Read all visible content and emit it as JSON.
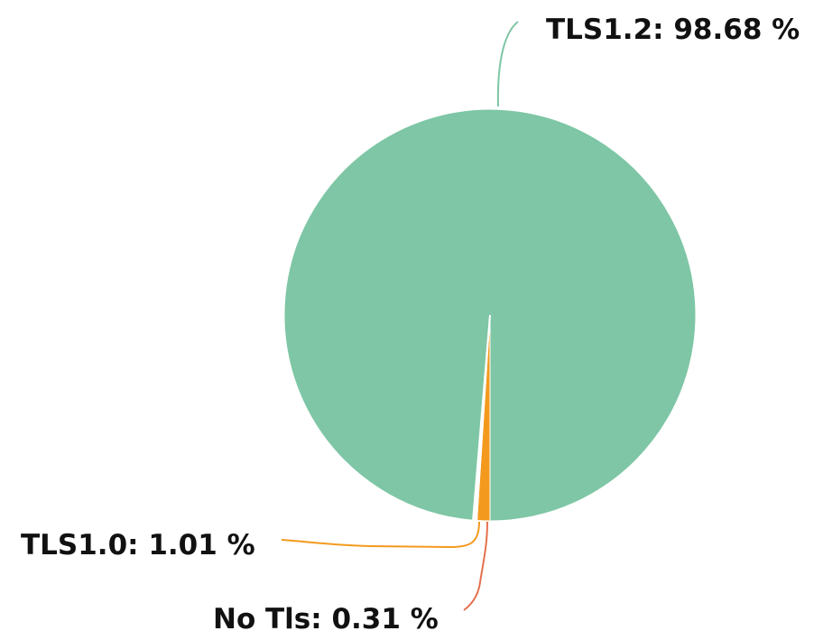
{
  "chart_data": {
    "type": "pie",
    "title": "",
    "slices": [
      {
        "label": "TLS1.2",
        "value": 98.68,
        "display": "98.68 %",
        "color": "#7ec6a5",
        "leader_color": "#7ec6a5"
      },
      {
        "label": "TLS1.0",
        "value": 1.01,
        "display": "1.01 %",
        "color": "#f39a1e",
        "leader_color": "#f39a1e"
      },
      {
        "label": "No Tls",
        "value": 0.31,
        "display": "0.31 %",
        "color": "#ffffff",
        "leader_color": "#e5704d"
      }
    ]
  }
}
